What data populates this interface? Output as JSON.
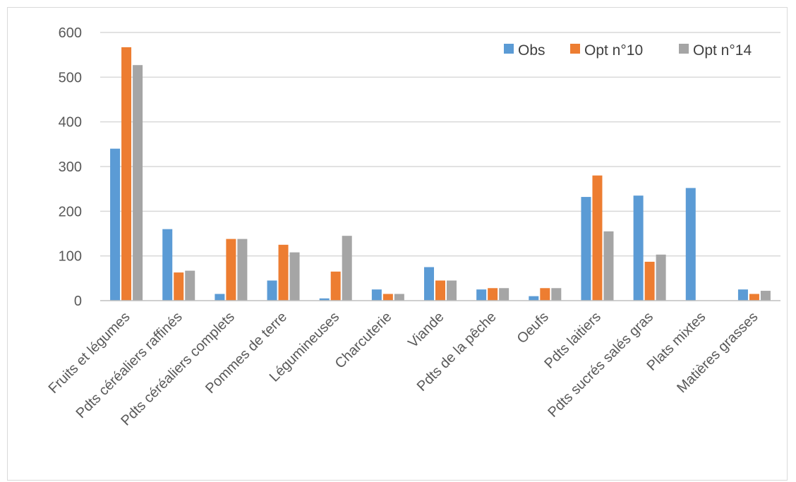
{
  "chart_data": {
    "type": "bar",
    "title": "",
    "xlabel": "",
    "ylabel": "",
    "ylim": [
      0,
      600
    ],
    "yticks": [
      0,
      100,
      200,
      300,
      400,
      500,
      600
    ],
    "grid": true,
    "legend_position": "top-right",
    "categories": [
      "Fruits et légumes",
      "Pdts céréaliers raffinés",
      "Pdts céréaliers complets",
      "Pommes de terre",
      "Légumineuses",
      "Charcuterie",
      "Viande",
      "Pdts de la pêche",
      "Oeufs",
      "Pdts laitiers",
      "Pdts sucrés salés gras",
      "Plats mixtes",
      "Matières grasses"
    ],
    "series": [
      {
        "name": "Obs",
        "color": "#5b9bd5",
        "values": [
          340,
          160,
          15,
          45,
          5,
          25,
          75,
          25,
          10,
          232,
          235,
          252,
          25
        ]
      },
      {
        "name": "Opt n°10",
        "color": "#ed7d31",
        "values": [
          567,
          63,
          138,
          125,
          65,
          15,
          45,
          28,
          28,
          280,
          87,
          0,
          15
        ]
      },
      {
        "name": "Opt n°14",
        "color": "#a5a5a5",
        "values": [
          527,
          67,
          138,
          108,
          145,
          15,
          45,
          28,
          28,
          155,
          103,
          0,
          22
        ]
      }
    ]
  }
}
